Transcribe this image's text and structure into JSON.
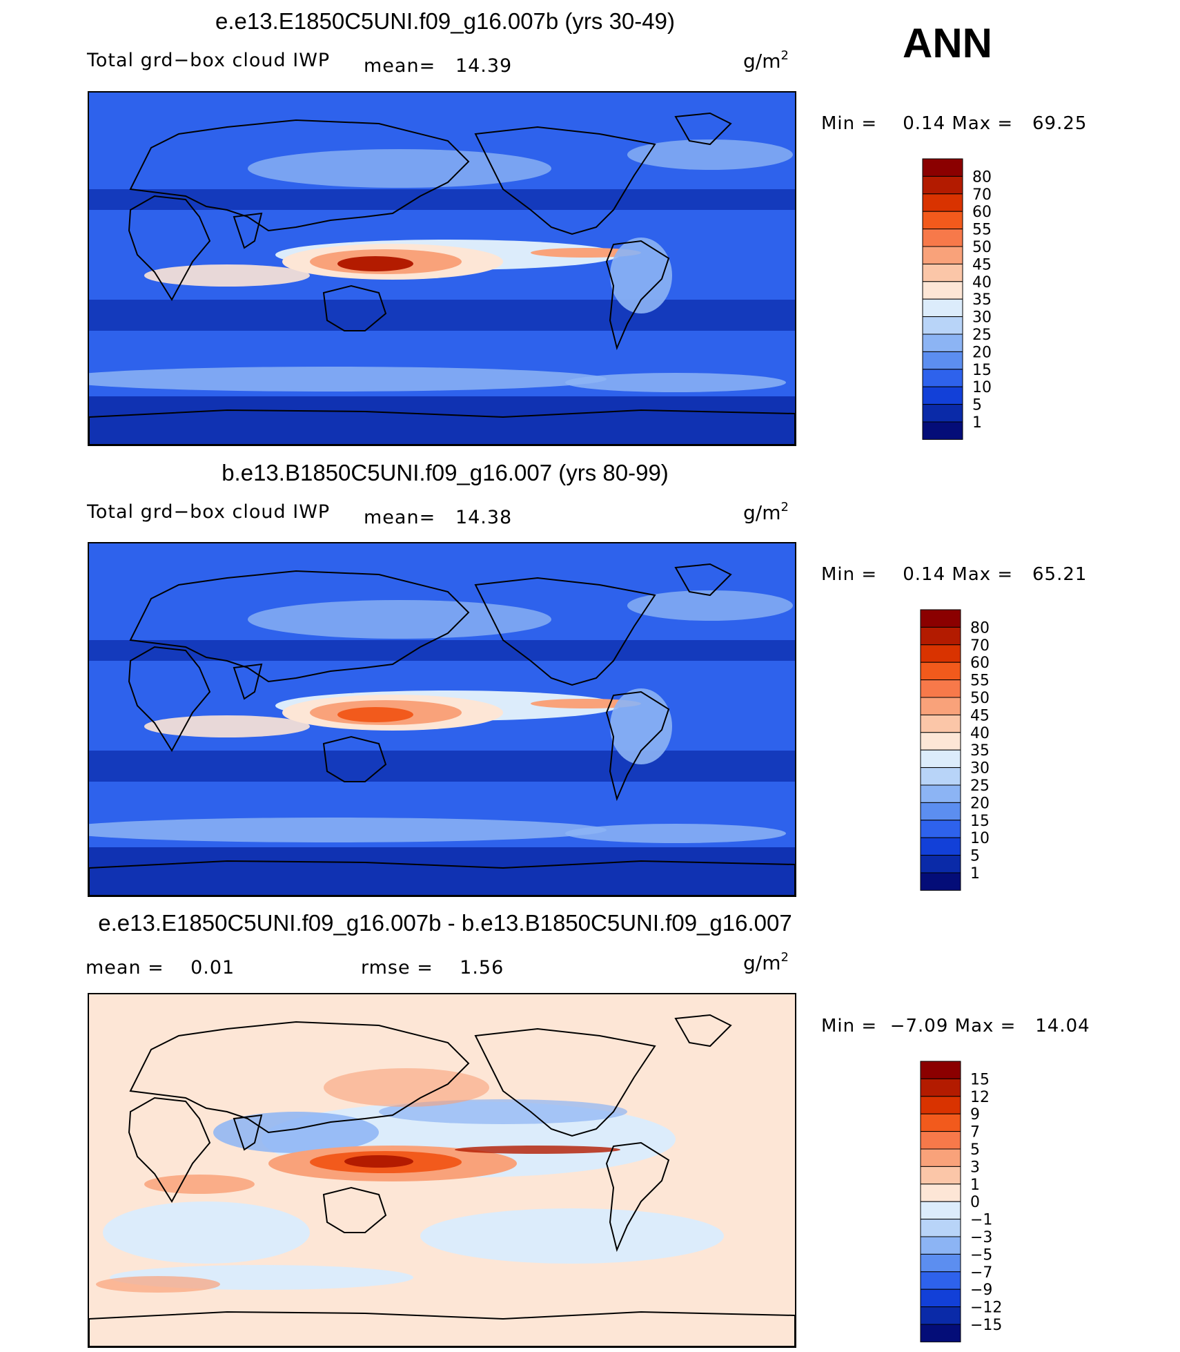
{
  "season": "ANN",
  "panels": [
    {
      "id": "top",
      "title": "e.e13.E1850C5UNI.f09_g16.007b (yrs 30-49)",
      "left_label": "Total grd−box cloud IWP",
      "stat1": "mean=   14.39",
      "stat2": "",
      "units_base": "g/m",
      "units_exp": "2",
      "minmax": "Min =    0.14 Max =   69.25",
      "colorbar_levels": [
        "80",
        "70",
        "60",
        "55",
        "50",
        "45",
        "40",
        "35",
        "30",
        "25",
        "20",
        "15",
        "10",
        "5",
        "1"
      ],
      "colorbar_colors": [
        "#8b0000",
        "#b31b00",
        "#d93300",
        "#f25a1c",
        "#f7794a",
        "#f9a27a",
        "#fbc6a8",
        "#fde6d6",
        "#dcecfb",
        "#b8d4f8",
        "#8cb4f4",
        "#5c8ef0",
        "#2e62ec",
        "#1240d8",
        "#0a2aa8",
        "#040d78"
      ]
    },
    {
      "id": "middle",
      "title": "b.e13.B1850C5UNI.f09_g16.007 (yrs 80-99)",
      "left_label": "Total grd−box cloud IWP",
      "stat1": "mean=   14.38",
      "stat2": "",
      "units_base": "g/m",
      "units_exp": "2",
      "minmax": "Min =    0.14 Max =   65.21",
      "colorbar_levels": [
        "80",
        "70",
        "60",
        "55",
        "50",
        "45",
        "40",
        "35",
        "30",
        "25",
        "20",
        "15",
        "10",
        "5",
        "1"
      ],
      "colorbar_colors": [
        "#8b0000",
        "#b31b00",
        "#d93300",
        "#f25a1c",
        "#f7794a",
        "#f9a27a",
        "#fbc6a8",
        "#fde6d6",
        "#dcecfb",
        "#b8d4f8",
        "#8cb4f4",
        "#5c8ef0",
        "#2e62ec",
        "#1240d8",
        "#0a2aa8",
        "#040d78"
      ]
    },
    {
      "id": "diff",
      "title": "e.e13.E1850C5UNI.f09_g16.007b - b.e13.B1850C5UNI.f09_g16.007",
      "left_label": "mean =    0.01",
      "stat1": "rmse =    1.56",
      "stat2": "",
      "units_base": "g/m",
      "units_exp": "2",
      "minmax": "Min =  −7.09 Max =   14.04",
      "colorbar_levels": [
        "15",
        "12",
        "9",
        "7",
        "5",
        "3",
        "1",
        "0",
        "−1",
        "−3",
        "−5",
        "−7",
        "−9",
        "−12",
        "−15"
      ],
      "colorbar_colors": [
        "#8b0000",
        "#b31b00",
        "#d93300",
        "#f25a1c",
        "#f7794a",
        "#f9a27a",
        "#fbc6a8",
        "#fde6d6",
        "#dcecfb",
        "#b8d4f8",
        "#8cb4f4",
        "#5c8ef0",
        "#2e62ec",
        "#1240d8",
        "#0a2aa8",
        "#040d78"
      ]
    }
  ],
  "map_colors": {
    "deep_blue": "#0a2aa8",
    "mid_blue": "#2e62ec",
    "light_blue": "#8cb4f4",
    "pale_blue": "#dcecfb",
    "pale_red": "#fde6d6",
    "salmon": "#f9a27a",
    "orange": "#f25a1c",
    "dark_red": "#b31b00",
    "coastline": "#000000"
  }
}
